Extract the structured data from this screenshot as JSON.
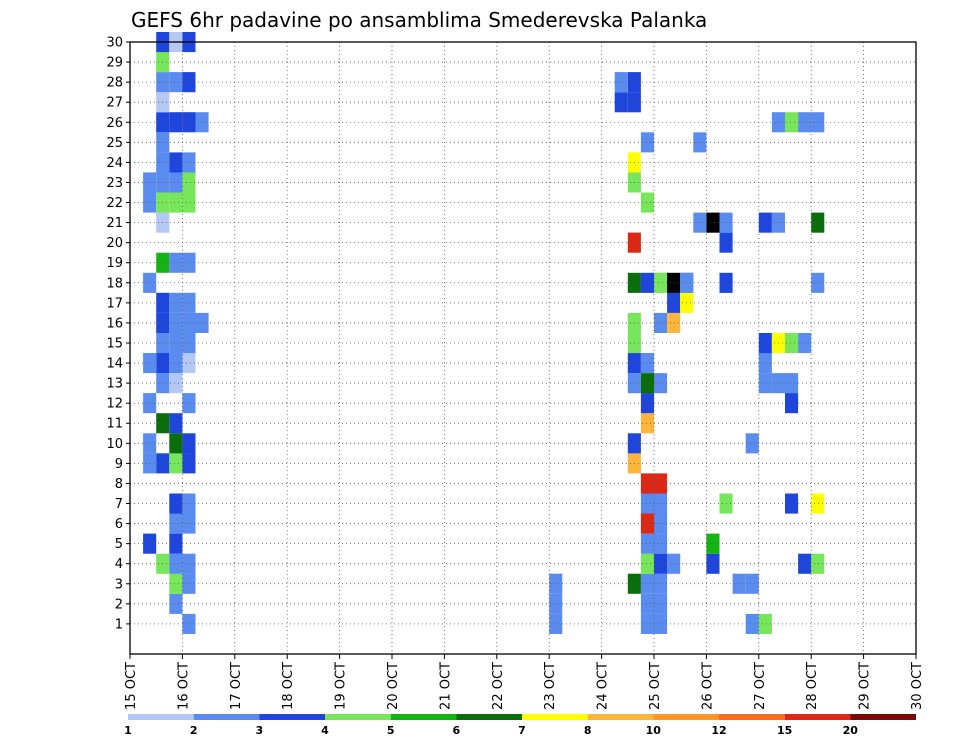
{
  "chart_data": {
    "type": "heatmap",
    "title": "GEFS 6hr padavine po ansamblima Smederevska Palanka",
    "xlabel": "",
    "ylabel": "",
    "x_ticks": [
      "15 OCT",
      "16 OCT",
      "17 OCT",
      "18 OCT",
      "19 OCT",
      "20 OCT",
      "21 OCT",
      "22 OCT",
      "23 OCT",
      "24 OCT",
      "25 OCT",
      "26 OCT",
      "27 OCT",
      "28 OCT",
      "29 OCT",
      "30 OCT"
    ],
    "y_ticks": [
      "1",
      "2",
      "3",
      "4",
      "5",
      "6",
      "7",
      "8",
      "9",
      "10",
      "11",
      "12",
      "13",
      "14",
      "15",
      "16",
      "17",
      "18",
      "19",
      "20",
      "21",
      "22",
      "23",
      "24",
      "25",
      "26",
      "27",
      "28",
      "29",
      "30"
    ],
    "x_step_hours": 6,
    "grid": true,
    "legend": {
      "position": "bottom",
      "labels": [
        "1",
        "2",
        "3",
        "4",
        "5",
        "6",
        "7",
        "8",
        "10",
        "12",
        "15",
        "20"
      ],
      "colors": [
        "#b4c8f5",
        "#5a8cf0",
        "#1e46dc",
        "#78e65a",
        "#14b414",
        "#0a6e0a",
        "#ffff00",
        "#ffb43c",
        "#ff9628",
        "#ff6e1e",
        "#dc2814",
        "#780a0a"
      ]
    },
    "cells": [
      [
        2,
        1,
        1
      ],
      [
        2,
        2,
        1
      ],
      [
        2,
        3,
        1
      ],
      [
        9,
        1,
        1
      ],
      [
        9,
        2,
        1
      ],
      [
        10,
        1,
        1
      ],
      [
        10,
        2,
        1
      ],
      [
        9,
        3,
        1
      ],
      [
        10,
        3,
        1
      ],
      [
        9,
        4,
        3
      ],
      [
        11,
        4,
        1
      ],
      [
        9,
        5,
        1
      ],
      [
        10,
        5,
        1
      ],
      [
        10,
        6,
        1
      ],
      [
        9,
        7,
        1
      ],
      [
        10,
        7,
        1
      ],
      [
        8,
        3,
        5
      ],
      [
        10,
        4,
        2
      ],
      [
        9,
        8,
        10
      ],
      [
        10,
        8,
        10
      ],
      [
        9,
        6,
        10
      ],
      [
        8,
        9,
        7
      ],
      [
        8,
        10,
        2
      ],
      [
        9,
        11,
        7
      ],
      [
        9,
        12,
        2
      ],
      [
        8,
        13,
        1
      ],
      [
        8,
        14,
        2
      ],
      [
        8,
        15,
        3
      ],
      [
        8,
        16,
        3
      ],
      [
        9,
        14,
        1
      ],
      [
        9,
        13,
        5
      ],
      [
        10,
        13,
        1
      ],
      [
        10,
        16,
        1
      ],
      [
        11,
        16,
        7
      ],
      [
        11,
        17,
        2
      ],
      [
        12,
        17,
        6
      ],
      [
        8,
        18,
        5
      ],
      [
        9,
        18,
        2
      ],
      [
        10,
        18,
        3
      ],
      [
        11,
        18,
        12
      ],
      [
        12,
        18,
        1
      ],
      [
        8,
        20,
        10
      ],
      [
        9,
        22,
        3
      ],
      [
        8,
        23,
        3
      ],
      [
        8,
        24,
        6
      ],
      [
        9,
        25,
        1
      ],
      [
        8,
        27,
        2
      ],
      [
        7,
        27,
        2
      ],
      [
        8,
        28,
        2
      ],
      [
        7,
        28,
        1
      ],
      [
        17,
        1,
        1
      ],
      [
        18,
        1,
        3
      ],
      [
        16,
        3,
        1
      ],
      [
        17,
        3,
        1
      ],
      [
        14,
        4,
        2
      ],
      [
        14,
        5,
        4
      ],
      [
        17,
        10,
        1
      ],
      [
        18,
        13,
        1
      ],
      [
        18,
        14,
        1
      ],
      [
        19,
        13,
        1
      ],
      [
        20,
        13,
        1
      ],
      [
        20,
        12,
        2
      ],
      [
        18,
        15,
        2
      ],
      [
        19,
        15,
        6
      ],
      [
        20,
        15,
        3
      ],
      [
        21,
        15,
        1
      ],
      [
        20,
        7,
        2
      ],
      [
        22,
        7,
        6
      ],
      [
        15,
        7,
        3
      ],
      [
        21,
        4,
        2
      ],
      [
        22,
        4,
        3
      ],
      [
        15,
        18,
        2
      ],
      [
        15,
        20,
        2
      ],
      [
        15,
        21,
        1
      ],
      [
        14,
        21,
        12
      ],
      [
        13,
        21,
        1
      ],
      [
        18,
        21,
        2
      ],
      [
        19,
        21,
        1
      ],
      [
        22,
        21,
        5
      ],
      [
        22,
        18,
        1
      ],
      [
        19,
        26,
        1
      ],
      [
        20,
        26,
        3
      ],
      [
        21,
        26,
        1
      ],
      [
        22,
        26,
        1
      ],
      [
        13,
        25,
        1
      ],
      [
        12,
        18,
        1
      ]
    ],
    "left_cells": [
      [
        2,
        4,
        3
      ],
      [
        1,
        5,
        2
      ],
      [
        1,
        10,
        1
      ],
      [
        1,
        9,
        1
      ],
      [
        2,
        9,
        2
      ],
      [
        1,
        12,
        1
      ],
      [
        2,
        13,
        1
      ],
      [
        2,
        14,
        2
      ],
      [
        2,
        15,
        1
      ],
      [
        2,
        16,
        2
      ],
      [
        2,
        17,
        2
      ],
      [
        1,
        18,
        1
      ],
      [
        2,
        19,
        4
      ],
      [
        2,
        21,
        0
      ],
      [
        1,
        22,
        1
      ],
      [
        2,
        22,
        3
      ],
      [
        1,
        23,
        1
      ],
      [
        2,
        23,
        1
      ],
      [
        2,
        24,
        1
      ],
      [
        2,
        25,
        1
      ],
      [
        2,
        26,
        2
      ],
      [
        2,
        27,
        0
      ],
      [
        2,
        28,
        1
      ],
      [
        2,
        29,
        3
      ],
      [
        2,
        30,
        2
      ],
      [
        3,
        30,
        0
      ],
      [
        1,
        14,
        1
      ],
      [
        3,
        2,
        1
      ],
      [
        3,
        3,
        3
      ],
      [
        3,
        4,
        1
      ],
      [
        3,
        5,
        2
      ],
      [
        3,
        6,
        1
      ],
      [
        3,
        7,
        2
      ],
      [
        3,
        9,
        3
      ],
      [
        3,
        10,
        5
      ],
      [
        3,
        11,
        2
      ],
      [
        3,
        13,
        0
      ],
      [
        3,
        14,
        1
      ],
      [
        3,
        15,
        1
      ],
      [
        3,
        16,
        1
      ],
      [
        3,
        17,
        1
      ],
      [
        3,
        19,
        1
      ],
      [
        3,
        22,
        3
      ],
      [
        3,
        23,
        1
      ],
      [
        3,
        24,
        2
      ],
      [
        3,
        26,
        2
      ],
      [
        3,
        28,
        1
      ],
      [
        4,
        10,
        2
      ],
      [
        4,
        9,
        2
      ],
      [
        4,
        12,
        1
      ],
      [
        4,
        14,
        0
      ],
      [
        4,
        15,
        1
      ],
      [
        4,
        16,
        1
      ],
      [
        4,
        17,
        1
      ],
      [
        4,
        19,
        1
      ],
      [
        4,
        22,
        3
      ],
      [
        4,
        23,
        3
      ],
      [
        4,
        24,
        1
      ],
      [
        4,
        26,
        2
      ],
      [
        4,
        28,
        2
      ],
      [
        4,
        30,
        2
      ],
      [
        4,
        7,
        1
      ],
      [
        4,
        6,
        1
      ],
      [
        4,
        4,
        1
      ],
      [
        4,
        3,
        1
      ],
      [
        5,
        16,
        1
      ],
      [
        5,
        26,
        1
      ],
      [
        4,
        1,
        1
      ],
      [
        2,
        11,
        5
      ]
    ]
  }
}
